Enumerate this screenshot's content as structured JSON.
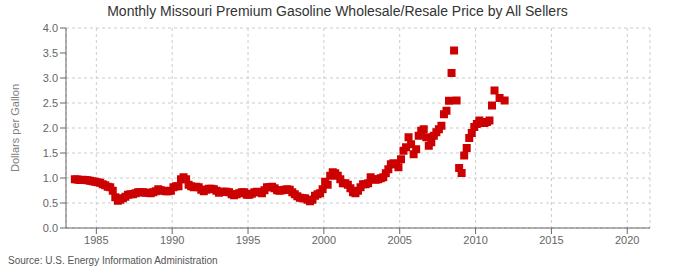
{
  "chart_data": {
    "type": "scatter",
    "title": "Monthly Missouri Premium Gasoline Wholesale/Resale Price by All Sellers",
    "y_label": "Dollars per Gallon",
    "annotations": [
      "Source: U.S. Energy Information Administration"
    ],
    "xlim": [
      1983.0,
      2021.5
    ],
    "ylim": [
      0.0,
      4.0
    ],
    "xticks": [
      1985,
      1990,
      1995,
      2000,
      2005,
      2010,
      2015,
      2020
    ],
    "yticks": [
      {
        "value": 0.0,
        "label": "0.0"
      },
      0.5,
      {
        "value": 1.0,
        "label": "1.0"
      },
      1.5,
      {
        "value": 2.0,
        "label": "2.0"
      },
      2.5,
      {
        "value": 3.0,
        "label": "3.0"
      },
      3.5,
      {
        "value": 4.0,
        "label": "4.0"
      }
    ],
    "color": "#cc0000",
    "marker": "square",
    "grid": true,
    "x": [
      1983.583,
      1983.75,
      1983.917,
      1984.083,
      1984.25,
      1984.417,
      1984.583,
      1984.75,
      1984.917,
      1985.083,
      1985.25,
      1985.417,
      1985.583,
      1985.75,
      1985.917,
      1986.083,
      1986.25,
      1986.417,
      1986.583,
      1986.75,
      1986.917,
      1987.083,
      1987.25,
      1987.417,
      1987.583,
      1987.75,
      1987.917,
      1988.083,
      1988.25,
      1988.417,
      1988.583,
      1988.75,
      1988.917,
      1989.083,
      1989.25,
      1989.417,
      1989.583,
      1989.75,
      1989.917,
      1990.083,
      1990.25,
      1990.417,
      1990.583,
      1990.75,
      1990.917,
      1991.083,
      1991.25,
      1991.417,
      1991.583,
      1991.75,
      1991.917,
      1992.083,
      1992.25,
      1992.417,
      1992.583,
      1992.75,
      1992.917,
      1993.083,
      1993.25,
      1993.417,
      1993.583,
      1993.75,
      1993.917,
      1994.083,
      1994.25,
      1994.417,
      1994.583,
      1994.75,
      1994.917,
      1995.083,
      1995.25,
      1995.417,
      1995.583,
      1995.75,
      1995.917,
      1996.083,
      1996.25,
      1996.417,
      1996.583,
      1996.75,
      1996.917,
      1997.083,
      1997.25,
      1997.417,
      1997.583,
      1997.75,
      1997.917,
      1998.083,
      1998.25,
      1998.417,
      1998.583,
      1998.75,
      1998.917,
      1999.083,
      1999.25,
      1999.417,
      1999.583,
      1999.75,
      1999.917,
      2000.083,
      2000.25,
      2000.417,
      2000.583,
      2000.75,
      2000.917,
      2001.083,
      2001.25,
      2001.417,
      2001.583,
      2001.75,
      2001.917,
      2002.083,
      2002.25,
      2002.417,
      2002.583,
      2002.75,
      2002.917,
      2003.083,
      2003.25,
      2003.417,
      2003.583,
      2003.75,
      2003.917,
      2004.083,
      2004.25,
      2004.417,
      2004.583,
      2004.75,
      2004.917,
      2005.083,
      2005.25,
      2005.417,
      2005.583,
      2005.75,
      2005.917,
      2006.083,
      2006.25,
      2006.417,
      2006.583,
      2006.75,
      2006.917,
      2007.083,
      2007.25,
      2007.417,
      2007.583,
      2007.75,
      2007.917,
      2008.083,
      2008.25,
      2008.417,
      2008.583,
      2008.75,
      2008.917,
      2009.083,
      2009.25,
      2009.417,
      2009.583,
      2009.75,
      2009.917,
      2010.083,
      2010.25,
      2010.417,
      2010.583,
      2010.75,
      2010.917,
      2011.083,
      2011.25,
      2011.583,
      2011.917
    ],
    "values": [
      0.975,
      0.97,
      0.96,
      0.965,
      0.96,
      0.955,
      0.945,
      0.935,
      0.925,
      0.915,
      0.905,
      0.875,
      0.855,
      0.825,
      0.815,
      0.745,
      0.615,
      0.545,
      0.565,
      0.595,
      0.625,
      0.665,
      0.675,
      0.675,
      0.695,
      0.715,
      0.715,
      0.715,
      0.705,
      0.705,
      0.695,
      0.715,
      0.735,
      0.775,
      0.755,
      0.745,
      0.735,
      0.735,
      0.745,
      0.815,
      0.835,
      0.835,
      0.975,
      1.015,
      0.975,
      0.865,
      0.835,
      0.815,
      0.825,
      0.815,
      0.765,
      0.735,
      0.765,
      0.785,
      0.785,
      0.775,
      0.745,
      0.705,
      0.725,
      0.725,
      0.725,
      0.715,
      0.675,
      0.655,
      0.675,
      0.695,
      0.715,
      0.715,
      0.665,
      0.665,
      0.685,
      0.715,
      0.725,
      0.715,
      0.695,
      0.755,
      0.815,
      0.815,
      0.825,
      0.795,
      0.755,
      0.745,
      0.755,
      0.765,
      0.775,
      0.765,
      0.715,
      0.675,
      0.635,
      0.605,
      0.595,
      0.595,
      0.565,
      0.535,
      0.565,
      0.645,
      0.675,
      0.695,
      0.775,
      0.925,
      0.865,
      1.045,
      1.115,
      1.095,
      1.045,
      0.975,
      0.895,
      0.895,
      0.865,
      0.795,
      0.715,
      0.695,
      0.745,
      0.815,
      0.875,
      0.875,
      0.895,
      1.015,
      0.975,
      0.965,
      0.975,
      0.995,
      1.015,
      1.095,
      1.175,
      1.275,
      1.295,
      1.275,
      1.215,
      1.375,
      1.545,
      1.615,
      1.815,
      1.675,
      1.475,
      1.575,
      1.845,
      1.945,
      1.975,
      1.815,
      1.645,
      1.715,
      1.845,
      1.915,
      1.975,
      2.045,
      2.275,
      2.345,
      2.545,
      3.1,
      3.55,
      2.55,
      1.2,
      1.1,
      1.45,
      1.6,
      1.8,
      1.9,
      2.02,
      2.08,
      2.15,
      2.1,
      2.1,
      2.12,
      2.15,
      2.45,
      2.75,
      2.6,
      2.55
    ]
  }
}
